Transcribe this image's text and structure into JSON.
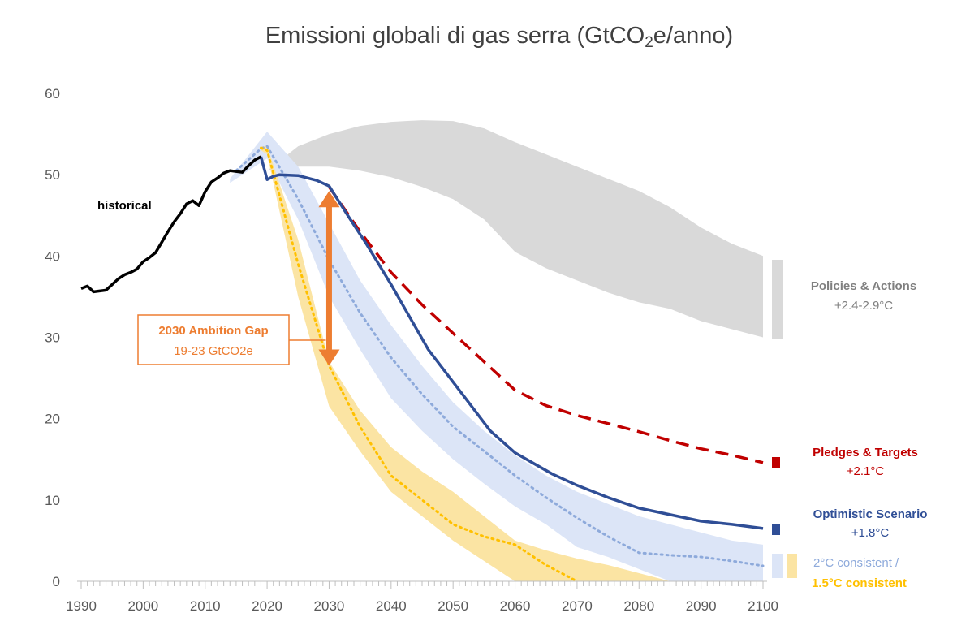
{
  "chart_data": {
    "type": "line",
    "title": {
      "prefix": "Emissioni globali di gas serra (GtCO",
      "subscript": "2",
      "suffix": "e/anno)"
    },
    "xlabel": "",
    "ylabel": "",
    "xlim": [
      1990,
      2100
    ],
    "ylim": [
      0,
      60
    ],
    "x_ticks": [
      1990,
      2000,
      2010,
      2020,
      2030,
      2040,
      2050,
      2060,
      2070,
      2080,
      2090,
      2100
    ],
    "y_ticks": [
      0,
      10,
      20,
      30,
      40,
      50,
      60
    ],
    "grid": false,
    "series": [
      {
        "name": "historical",
        "color": "#000000",
        "style": "solid",
        "x": [
          1990,
          1991,
          1992,
          1993,
          1994,
          1995,
          1996,
          1997,
          1998,
          1999,
          2000,
          2001,
          2002,
          2003,
          2004,
          2005,
          2006,
          2007,
          2008,
          2009,
          2010,
          2011,
          2012,
          2013,
          2014,
          2015,
          2016,
          2017,
          2018,
          2019
        ],
        "y": [
          36,
          36.3,
          35.6,
          35.7,
          35.8,
          36.5,
          37.2,
          37.7,
          38,
          38.4,
          39.3,
          39.8,
          40.4,
          41.7,
          43,
          44.2,
          45.2,
          46.4,
          46.8,
          46.2,
          47.9,
          49.1,
          49.6,
          50.2,
          50.5,
          50.4,
          50.3,
          51.1,
          51.8,
          52.2
        ]
      },
      {
        "name": "Pledges & Targets",
        "label": "Pledges & Targets",
        "temp": "+2.1°C",
        "color": "#c00000",
        "style": "dashed",
        "x": [
          2030,
          2035,
          2040,
          2045,
          2050,
          2055,
          2060,
          2065,
          2070,
          2075,
          2080,
          2085,
          2090,
          2095,
          2100
        ],
        "y": [
          48.5,
          43,
          38,
          34,
          30.5,
          27,
          23.5,
          21.6,
          20.4,
          19.4,
          18.4,
          17.3,
          16.3,
          15.5,
          14.6
        ]
      },
      {
        "name": "Optimistic Scenario",
        "label": "Optimistic Scenario",
        "temp": "+1.8°C",
        "color": "#2f4e96",
        "style": "solid",
        "x": [
          2019,
          2020,
          2021,
          2022,
          2025,
          2028,
          2030,
          2033,
          2036,
          2040,
          2043,
          2046,
          2050,
          2053,
          2056,
          2060,
          2063,
          2066,
          2070,
          2075,
          2080,
          2085,
          2090,
          2095,
          2100
        ],
        "y": [
          52.2,
          49.4,
          49.8,
          50,
          49.9,
          49.3,
          48.6,
          45,
          41.5,
          36.5,
          32.5,
          28.5,
          24.5,
          21.5,
          18.5,
          15.8,
          14.5,
          13.2,
          11.8,
          10.3,
          9,
          8.2,
          7.4,
          7,
          6.5
        ]
      },
      {
        "name": "2°C consistent",
        "label": "2°C consistent /",
        "color": "#8eaadb",
        "band_color": "#dce5f7",
        "style": "dotted",
        "x": [
          2015,
          2019,
          2020,
          2025,
          2030,
          2035,
          2040,
          2045,
          2050,
          2055,
          2060,
          2065,
          2070,
          2075,
          2080,
          2085,
          2090,
          2095,
          2100
        ],
        "y": [
          50.5,
          53.2,
          53.5,
          47,
          39.5,
          33,
          27.5,
          23,
          19,
          16,
          13,
          10.3,
          7.8,
          5.5,
          3.5,
          3.2,
          3.0,
          2.5,
          1.9
        ],
        "band_x": [
          2014,
          2020,
          2025,
          2030,
          2035,
          2040,
          2045,
          2050,
          2055,
          2060,
          2065,
          2070,
          2075,
          2080,
          2085,
          2090,
          2095,
          2100
        ],
        "band_upper": [
          49.5,
          55.3,
          51,
          44,
          37,
          31.5,
          26.5,
          22,
          18.5,
          15.5,
          13,
          11,
          9.5,
          8,
          7,
          6,
          5,
          4.5
        ],
        "band_lower": [
          49,
          52,
          44.5,
          35,
          28.5,
          22.5,
          18.5,
          15,
          12,
          9.2,
          7,
          4.2,
          3,
          1.5,
          0,
          0,
          0,
          0
        ]
      },
      {
        "name": "1.5°C consistent",
        "label": "1.5°C  consistent",
        "color": "#ffc000",
        "band_color": "#fbe4a3",
        "style": "dotted",
        "x": [
          2019,
          2020,
          2025,
          2030,
          2035,
          2040,
          2045,
          2050,
          2055,
          2060,
          2065,
          2070
        ],
        "y": [
          53.3,
          53,
          39,
          26.5,
          19,
          13,
          10,
          7,
          5.5,
          4.5,
          2,
          0
        ],
        "band_x": [
          2019,
          2020,
          2025,
          2030,
          2035,
          2040,
          2045,
          2050,
          2055,
          2060,
          2065,
          2070,
          2075,
          2080,
          2085
        ],
        "band_upper": [
          53.5,
          53.5,
          42,
          27,
          21,
          16.5,
          13.5,
          11,
          8,
          5,
          3.8,
          2.8,
          2,
          1,
          0
        ],
        "band_lower": [
          53,
          52.5,
          35,
          21.5,
          16,
          11,
          8,
          5,
          2.5,
          0,
          0,
          0,
          0,
          0,
          0
        ]
      }
    ],
    "policies_band": {
      "label": "Policies & Actions",
      "temp": "+2.4-2.9°C",
      "color": "#d9d9d9",
      "x": [
        2020,
        2025,
        2030,
        2035,
        2040,
        2045,
        2050,
        2055,
        2060,
        2065,
        2070,
        2075,
        2080,
        2085,
        2090,
        2095,
        2100
      ],
      "upper": [
        50.5,
        53.5,
        55,
        56,
        56.5,
        56.7,
        56.6,
        55.7,
        54,
        52.5,
        51,
        49.5,
        48,
        46,
        43.5,
        41.5,
        40
      ],
      "lower": [
        50.5,
        51,
        51,
        50.5,
        49.7,
        48.5,
        47,
        44.5,
        40.5,
        38.5,
        37,
        35.5,
        34.3,
        33.5,
        32,
        31,
        30
      ]
    },
    "annotations": [
      {
        "text": "historical"
      },
      {
        "text": "2030 Ambition Gap",
        "subtext": "19-23 GtCO2e",
        "x": 2030,
        "y_from": 48,
        "y_to": 26.5
      }
    ]
  }
}
